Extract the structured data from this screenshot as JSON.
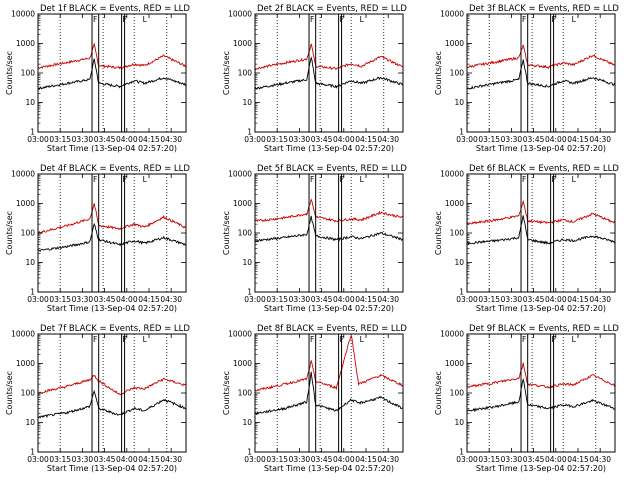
{
  "chart_data": {
    "type": "line",
    "time_range_minutes": [
      0,
      100
    ],
    "x_tick_labels": [
      "03:00",
      "03:15",
      "03:30",
      "03:45",
      "04:00",
      "04:15",
      "04:30"
    ],
    "x_tick_minutes": [
      0,
      15,
      30,
      45,
      60,
      75,
      90
    ],
    "y_scale": "log",
    "ylim": [
      1,
      10000
    ],
    "y_tick_labels": [
      "1",
      "10",
      "100",
      "1000",
      "10000"
    ],
    "ylabel": "Counts/sec",
    "xlabel": "Start Time (13-Sep-04 02:57:20)",
    "series_colors": {
      "events": "#000000",
      "lld": "#cc0000"
    },
    "markers": {
      "solid_lines": [
        36.5,
        41.0,
        56.5,
        58.5
      ],
      "dotted_lines": [
        15,
        44,
        65,
        87
      ],
      "labels": [
        "F",
        "F",
        "F",
        "L"
      ]
    },
    "panels": [
      {
        "title": "Det 1f BLACK = Events, RED = LLD",
        "lld": [
          [
            0,
            150
          ],
          [
            20,
            230
          ],
          [
            35,
            320
          ],
          [
            38,
            900
          ],
          [
            41,
            180
          ],
          [
            55,
            150
          ],
          [
            65,
            200
          ],
          [
            72,
            180
          ],
          [
            85,
            380
          ],
          [
            100,
            170
          ]
        ],
        "events": [
          [
            0,
            30
          ],
          [
            20,
            45
          ],
          [
            35,
            60
          ],
          [
            38,
            300
          ],
          [
            41,
            45
          ],
          [
            55,
            35
          ],
          [
            65,
            55
          ],
          [
            72,
            45
          ],
          [
            85,
            70
          ],
          [
            100,
            40
          ]
        ]
      },
      {
        "title": "Det 2f BLACK = Events, RED = LLD",
        "lld": [
          [
            0,
            140
          ],
          [
            20,
            220
          ],
          [
            35,
            300
          ],
          [
            38,
            950
          ],
          [
            41,
            170
          ],
          [
            55,
            140
          ],
          [
            65,
            210
          ],
          [
            72,
            170
          ],
          [
            85,
            360
          ],
          [
            100,
            160
          ]
        ],
        "events": [
          [
            0,
            30
          ],
          [
            20,
            45
          ],
          [
            35,
            60
          ],
          [
            38,
            350
          ],
          [
            41,
            45
          ],
          [
            55,
            35
          ],
          [
            65,
            55
          ],
          [
            72,
            45
          ],
          [
            85,
            70
          ],
          [
            100,
            40
          ]
        ]
      },
      {
        "title": "Det 3f BLACK = Events, RED = LLD",
        "lld": [
          [
            0,
            160
          ],
          [
            20,
            240
          ],
          [
            35,
            330
          ],
          [
            38,
            850
          ],
          [
            41,
            190
          ],
          [
            55,
            160
          ],
          [
            65,
            220
          ],
          [
            72,
            190
          ],
          [
            85,
            400
          ],
          [
            100,
            180
          ]
        ],
        "events": [
          [
            0,
            30
          ],
          [
            20,
            45
          ],
          [
            35,
            60
          ],
          [
            38,
            280
          ],
          [
            41,
            45
          ],
          [
            55,
            35
          ],
          [
            65,
            55
          ],
          [
            72,
            45
          ],
          [
            85,
            70
          ],
          [
            100,
            40
          ]
        ]
      },
      {
        "title": "Det 4f BLACK = Events, RED = LLD",
        "lld": [
          [
            0,
            100
          ],
          [
            20,
            180
          ],
          [
            35,
            300
          ],
          [
            38,
            1000
          ],
          [
            41,
            180
          ],
          [
            55,
            140
          ],
          [
            65,
            200
          ],
          [
            72,
            160
          ],
          [
            85,
            350
          ],
          [
            100,
            150
          ]
        ],
        "events": [
          [
            0,
            25
          ],
          [
            20,
            35
          ],
          [
            35,
            50
          ],
          [
            38,
            200
          ],
          [
            41,
            60
          ],
          [
            55,
            40
          ],
          [
            65,
            55
          ],
          [
            72,
            45
          ],
          [
            85,
            70
          ],
          [
            100,
            40
          ]
        ]
      },
      {
        "title": "Det 5f BLACK = Events, RED = LLD",
        "lld": [
          [
            0,
            250
          ],
          [
            20,
            330
          ],
          [
            35,
            450
          ],
          [
            38,
            1400
          ],
          [
            41,
            350
          ],
          [
            55,
            260
          ],
          [
            65,
            300
          ],
          [
            72,
            280
          ],
          [
            85,
            500
          ],
          [
            100,
            330
          ]
        ],
        "events": [
          [
            0,
            55
          ],
          [
            20,
            70
          ],
          [
            35,
            90
          ],
          [
            38,
            350
          ],
          [
            41,
            80
          ],
          [
            55,
            60
          ],
          [
            65,
            75
          ],
          [
            72,
            65
          ],
          [
            85,
            100
          ],
          [
            100,
            60
          ]
        ]
      },
      {
        "title": "Det 6f BLACK = Events, RED = LLD",
        "lld": [
          [
            0,
            200
          ],
          [
            20,
            280
          ],
          [
            35,
            380
          ],
          [
            38,
            1200
          ],
          [
            41,
            260
          ],
          [
            55,
            220
          ],
          [
            65,
            280
          ],
          [
            72,
            240
          ],
          [
            85,
            450
          ],
          [
            100,
            220
          ]
        ],
        "events": [
          [
            0,
            45
          ],
          [
            20,
            55
          ],
          [
            35,
            70
          ],
          [
            38,
            400
          ],
          [
            41,
            60
          ],
          [
            55,
            45
          ],
          [
            65,
            60
          ],
          [
            72,
            55
          ],
          [
            85,
            80
          ],
          [
            100,
            50
          ]
        ]
      },
      {
        "title": "Det 7f BLACK = Events, RED = LLD",
        "lld": [
          [
            0,
            100
          ],
          [
            20,
            170
          ],
          [
            35,
            280
          ],
          [
            38,
            400
          ],
          [
            41,
            260
          ],
          [
            55,
            90
          ],
          [
            65,
            150
          ],
          [
            72,
            140
          ],
          [
            85,
            300
          ],
          [
            100,
            180
          ]
        ],
        "events": [
          [
            0,
            15
          ],
          [
            20,
            22
          ],
          [
            35,
            35
          ],
          [
            38,
            120
          ],
          [
            41,
            30
          ],
          [
            55,
            18
          ],
          [
            65,
            30
          ],
          [
            72,
            25
          ],
          [
            85,
            60
          ],
          [
            100,
            30
          ]
        ]
      },
      {
        "title": "Det 8f BLACK = Events, RED = LLD",
        "lld": [
          [
            0,
            120
          ],
          [
            20,
            200
          ],
          [
            35,
            300
          ],
          [
            38,
            1200
          ],
          [
            41,
            250
          ],
          [
            55,
            150
          ],
          [
            65,
            10000
          ],
          [
            70,
            200
          ],
          [
            85,
            400
          ],
          [
            100,
            180
          ]
        ],
        "events": [
          [
            0,
            20
          ],
          [
            20,
            30
          ],
          [
            35,
            50
          ],
          [
            38,
            500
          ],
          [
            41,
            40
          ],
          [
            55,
            25
          ],
          [
            65,
            60
          ],
          [
            70,
            45
          ],
          [
            85,
            70
          ],
          [
            100,
            30
          ]
        ]
      },
      {
        "title": "Det 9f BLACK = Events, RED = LLD",
        "lld": [
          [
            0,
            160
          ],
          [
            20,
            230
          ],
          [
            35,
            320
          ],
          [
            38,
            1000
          ],
          [
            41,
            200
          ],
          [
            55,
            160
          ],
          [
            65,
            200
          ],
          [
            72,
            190
          ],
          [
            85,
            400
          ],
          [
            100,
            180
          ]
        ],
        "events": [
          [
            0,
            25
          ],
          [
            20,
            35
          ],
          [
            35,
            50
          ],
          [
            38,
            300
          ],
          [
            41,
            40
          ],
          [
            55,
            30
          ],
          [
            65,
            40
          ],
          [
            72,
            35
          ],
          [
            85,
            55
          ],
          [
            100,
            30
          ]
        ]
      }
    ]
  }
}
